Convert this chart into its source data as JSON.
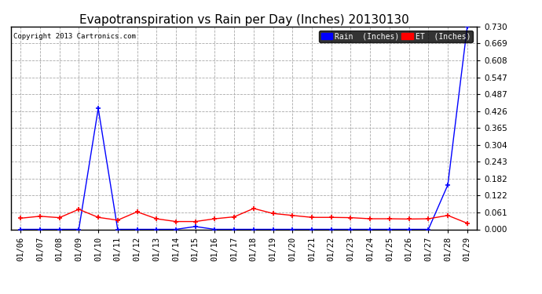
{
  "title": "Evapotranspiration vs Rain per Day (Inches) 20130130",
  "copyright": "Copyright 2013 Cartronics.com",
  "x_labels": [
    "01/06",
    "01/07",
    "01/08",
    "01/09",
    "01/10",
    "01/11",
    "01/12",
    "01/13",
    "01/14",
    "01/15",
    "01/16",
    "01/17",
    "01/18",
    "01/19",
    "01/20",
    "01/21",
    "01/22",
    "01/23",
    "01/24",
    "01/25",
    "01/26",
    "01/27",
    "01/28",
    "01/29"
  ],
  "rain_values": [
    0.0,
    0.0,
    0.0,
    0.0,
    0.435,
    0.0,
    0.0,
    0.0,
    0.0,
    0.01,
    0.0,
    0.0,
    0.0,
    0.0,
    0.0,
    0.0,
    0.0,
    0.0,
    0.0,
    0.0,
    0.0,
    0.0,
    0.16,
    0.73
  ],
  "et_values": [
    0.04,
    0.047,
    0.042,
    0.072,
    0.043,
    0.033,
    0.063,
    0.038,
    0.028,
    0.028,
    0.038,
    0.045,
    0.075,
    0.057,
    0.05,
    0.043,
    0.043,
    0.042,
    0.038,
    0.038,
    0.037,
    0.038,
    0.05,
    0.022
  ],
  "rain_color": "#0000FF",
  "et_color": "#FF0000",
  "background_color": "#FFFFFF",
  "grid_color": "#AAAAAA",
  "ylim": [
    0,
    0.73
  ],
  "yticks": [
    0.0,
    0.061,
    0.122,
    0.182,
    0.243,
    0.304,
    0.365,
    0.426,
    0.487,
    0.547,
    0.608,
    0.669,
    0.73
  ],
  "title_fontsize": 11,
  "tick_fontsize": 7.5,
  "legend_rain_label": "Rain  (Inches)",
  "legend_et_label": "ET  (Inches)"
}
